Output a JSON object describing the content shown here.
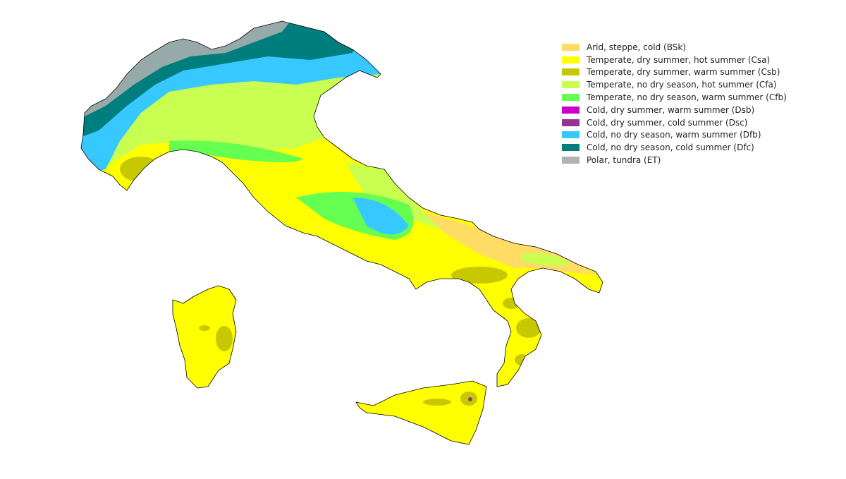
{
  "legend": [
    {
      "label": "Arid, steppe, cold (BSk)",
      "color": "#FFDC64"
    },
    {
      "label": "Temperate, dry summer, hot summer (Csa)",
      "color": "#FFFF00"
    },
    {
      "label": "Temperate, dry summer, warm summer (Csb)",
      "color": "#C8C800"
    },
    {
      "label": "Temperate, no dry season, hot summer (Cfa)",
      "color": "#C8FF50"
    },
    {
      "label": "Temperate, no dry season, warm summer (Cfb)",
      "color": "#64FF50"
    },
    {
      "label": "Cold, dry summer, warm summer (Dsb)",
      "color": "#C800C8"
    },
    {
      "label": "Cold, dry summer, cold summer (Dsc)",
      "color": "#963296"
    },
    {
      "label": "Cold, no dry season, warm summer (Dfb)",
      "color": "#37C8FF"
    },
    {
      "label": "Cold, no dry season, cold summer (Dfc)",
      "color": "#007D7D"
    },
    {
      "label": "Polar, tundra (ET)",
      "color": "#B2B2B2"
    }
  ]
}
